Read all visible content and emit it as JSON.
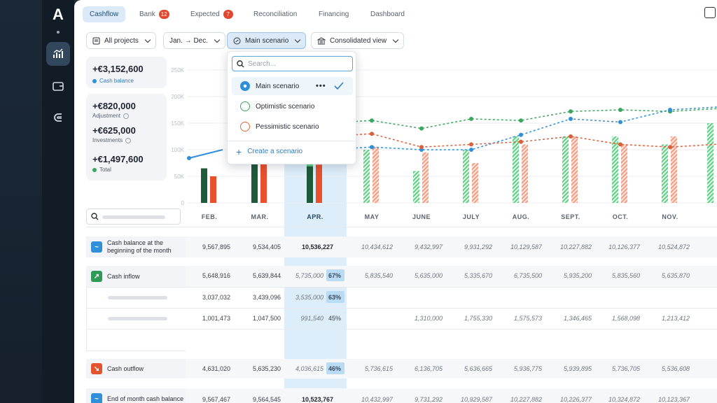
{
  "app": {
    "logo": "A"
  },
  "rail": {
    "items": [
      "chart-icon",
      "wallet-icon",
      "magnet-icon"
    ]
  },
  "tabs": [
    {
      "label": "Cashflow"
    },
    {
      "label": "Bank",
      "badge": "12"
    },
    {
      "label": "Expected",
      "badge": "7"
    },
    {
      "label": "Reconciliation"
    },
    {
      "label": "Financing"
    },
    {
      "label": "Dashboard"
    }
  ],
  "filters": {
    "projects": "All projects",
    "period": "Jan. → Dec.",
    "scenario": "Main scenario",
    "view": "Consolidated view"
  },
  "kpis": {
    "cash_balance": {
      "value": "+€3,152,600",
      "label": "Cash balance"
    },
    "adjustment": {
      "value": "+€820,000",
      "label": "Adjustment"
    },
    "investments": {
      "value": "+€625,000",
      "label": "Investments"
    },
    "total": {
      "value": "+€1,497,600",
      "label": "Total"
    }
  },
  "dropdown": {
    "placeholder": "Search...",
    "options": [
      {
        "label": "Main scenario",
        "selected": true,
        "color": "#2f8fd8"
      },
      {
        "label": "Optimistic scenario",
        "selected": false,
        "color": "#3aa65f"
      },
      {
        "label": "Pessimistic scenario",
        "selected": false,
        "color": "#e06a3c"
      }
    ],
    "create_label": "Create a scenario"
  },
  "chart_data": {
    "type": "bar",
    "categories": [
      "FEB.",
      "MAR.",
      "APR.",
      "MAY",
      "JUNE",
      "JULY",
      "AUG.",
      "SEPT.",
      "OCT.",
      "NOV."
    ],
    "ylim": [
      0,
      250000
    ],
    "yticks": [
      "0",
      "50K",
      "100K",
      "150K",
      "200K",
      "250K"
    ],
    "grid": true,
    "series": [
      {
        "values": [
          65000,
          90000,
          95000,
          100000,
          60000,
          100000,
          125000,
          125000,
          125000,
          110000
        ]
      },
      {
        "values": [
          50000,
          90000,
          90000,
          105000,
          95000,
          75000,
          110000,
          125000,
          110000,
          125000
        ]
      },
      {
        "values": [
          null,
          null,
          null,
          155000,
          140000,
          158000,
          155000,
          172000,
          175000,
          172000
        ]
      },
      {
        "values": [
          null,
          null,
          null,
          105000,
          100000,
          100000,
          128000,
          158000,
          152000,
          175000
        ]
      },
      {
        "values": [
          null,
          null,
          null,
          130000,
          105000,
          110000,
          115000,
          125000,
          110000,
          105000
        ]
      }
    ],
    "colors": {
      "inflow": "#1f5a3a",
      "outflow": "#e8502e",
      "inflow_forecast": "#5fcf83",
      "outflow_forecast": "#f29c82",
      "main": "#2f8fd8",
      "optimistic": "#3aa65f",
      "pessimistic": "#d9603a"
    }
  },
  "table": {
    "months": [
      "FEB.",
      "MAR.",
      "APR.",
      "MAY",
      "JUNE",
      "JULY",
      "AUG.",
      "SEPT.",
      "OCT.",
      "NOV."
    ],
    "rows": [
      {
        "label": "Cash balance at the beginning of the month",
        "icon": "trend-icon",
        "values": [
          "9,567,895",
          "9,534,405",
          "10,536,227",
          "10,434,612",
          "9,432,997",
          "9,931,292",
          "10,129,587",
          "10,227,882",
          "10,126,377",
          "10,524,872"
        ]
      },
      {
        "label": "Cash inflow",
        "icon": "arrow-up-right-icon",
        "values": [
          "5,648,916",
          "5,639,844",
          "5,735,000",
          "5,835,540",
          "5,635,000",
          "5,335,670",
          "6,735,500",
          "5,935,200",
          "5,835,560",
          "5,635,870"
        ],
        "apr_pct": "67%"
      },
      {
        "label": "",
        "values": [
          "3,037,032",
          "3,439,096",
          "3,535,000"
        ],
        "apr_pct": "63%"
      },
      {
        "label": "",
        "values": [
          "1,001,473",
          "1,047,500",
          "991,540",
          "",
          "1,310,000",
          "1,755,330",
          "1,575,573",
          "1,346,465",
          "1,568,098",
          "1,213,412"
        ],
        "apr_pct": "45%"
      },
      {
        "label": "Cash outflow",
        "icon": "arrow-down-right-icon",
        "values": [
          "4,631,020",
          "5,635,230",
          "4,036,615",
          "5,736,615",
          "6,136,705",
          "5,636,665",
          "5,936,775",
          "5,939,895",
          "5,736,705",
          "5,536,608"
        ],
        "apr_pct": "46%"
      },
      {
        "label": "End of month cash balance",
        "icon": "trend-icon",
        "values": [
          "9,567,467",
          "9,564,545",
          "10,523,767",
          "10,432,997",
          "9,731,292",
          "10,929,587",
          "10,227,882",
          "10,226,377",
          "10,324,872",
          "10,123,367"
        ]
      }
    ]
  }
}
